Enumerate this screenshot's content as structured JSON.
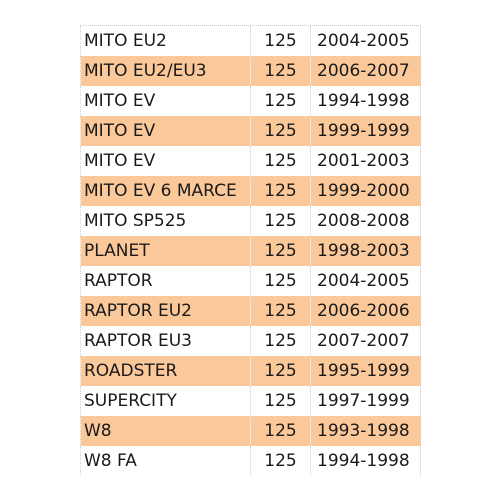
{
  "table": {
    "rows": [
      {
        "model": "MITO EU2",
        "cc": "125",
        "years": "2004-2005",
        "highlight": false
      },
      {
        "model": "MITO EU2/EU3",
        "cc": "125",
        "years": "2006-2007",
        "highlight": true
      },
      {
        "model": "MITO EV",
        "cc": "125",
        "years": "1994-1998",
        "highlight": false
      },
      {
        "model": "MITO EV",
        "cc": "125",
        "years": "1999-1999",
        "highlight": true
      },
      {
        "model": "MITO EV",
        "cc": "125",
        "years": "2001-2003",
        "highlight": false
      },
      {
        "model": "MITO EV 6 MARCE",
        "cc": "125",
        "years": "1999-2000",
        "highlight": true
      },
      {
        "model": "MITO SP525",
        "cc": "125",
        "years": "2008-2008",
        "highlight": false
      },
      {
        "model": "PLANET",
        "cc": "125",
        "years": "1998-2003",
        "highlight": true
      },
      {
        "model": "RAPTOR",
        "cc": "125",
        "years": "2004-2005",
        "highlight": false
      },
      {
        "model": "RAPTOR EU2",
        "cc": "125",
        "years": "2006-2006",
        "highlight": true
      },
      {
        "model": "RAPTOR EU3",
        "cc": "125",
        "years": "2007-2007",
        "highlight": false
      },
      {
        "model": "ROADSTER",
        "cc": "125",
        "years": "1995-1999",
        "highlight": true
      },
      {
        "model": "SUPERCITY",
        "cc": "125",
        "years": "1997-1999",
        "highlight": false
      },
      {
        "model": "W8",
        "cc": "125",
        "years": "1993-1998",
        "highlight": true
      },
      {
        "model": "W8 FA",
        "cc": "125",
        "years": "1994-1998",
        "highlight": false
      }
    ]
  },
  "colors": {
    "highlight_row": "#fbc89a",
    "text": "#1a1a1a"
  }
}
